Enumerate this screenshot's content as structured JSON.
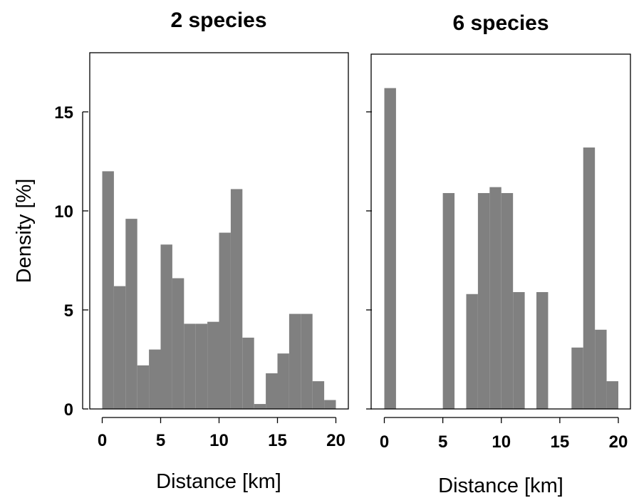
{
  "chart_data": [
    {
      "type": "bar",
      "title": "2 species",
      "xlabel": "Distance [km]",
      "ylabel": "Density [%]",
      "xlim": [
        -1,
        21
      ],
      "ylim": [
        0,
        18
      ],
      "xticks": [
        "0",
        "5",
        "10",
        "15",
        "20"
      ],
      "yticks": [
        "0",
        "5",
        "10",
        "15"
      ],
      "bin_width": 1,
      "bins": [
        {
          "start": 0,
          "value": 12.0
        },
        {
          "start": 1,
          "value": 6.2
        },
        {
          "start": 2,
          "value": 9.6
        },
        {
          "start": 3,
          "value": 2.2
        },
        {
          "start": 4,
          "value": 3.0
        },
        {
          "start": 5,
          "value": 8.3
        },
        {
          "start": 6,
          "value": 6.6
        },
        {
          "start": 7,
          "value": 4.3
        },
        {
          "start": 8,
          "value": 4.3
        },
        {
          "start": 9,
          "value": 4.4
        },
        {
          "start": 10,
          "value": 8.9
        },
        {
          "start": 11,
          "value": 11.1
        },
        {
          "start": 12,
          "value": 3.6
        },
        {
          "start": 13,
          "value": 0.25
        },
        {
          "start": 14,
          "value": 1.8
        },
        {
          "start": 15,
          "value": 2.8
        },
        {
          "start": 16,
          "value": 4.8
        },
        {
          "start": 17,
          "value": 4.8
        },
        {
          "start": 18,
          "value": 1.4
        },
        {
          "start": 19,
          "value": 0.45
        }
      ]
    },
    {
      "type": "bar",
      "title": "6 species",
      "xlabel": "Distance [km]",
      "ylabel": "",
      "xlim": [
        -1,
        21
      ],
      "ylim": [
        0,
        18
      ],
      "xticks": [
        "0",
        "5",
        "10",
        "15",
        "20"
      ],
      "yticks": [],
      "bin_width": 1,
      "bins": [
        {
          "start": 0,
          "value": 16.2
        },
        {
          "start": 5,
          "value": 10.9
        },
        {
          "start": 7,
          "value": 5.8
        },
        {
          "start": 8,
          "value": 10.9
        },
        {
          "start": 9,
          "value": 11.2
        },
        {
          "start": 10,
          "value": 10.9
        },
        {
          "start": 11,
          "value": 5.9
        },
        {
          "start": 13,
          "value": 5.9
        },
        {
          "start": 16,
          "value": 3.1
        },
        {
          "start": 17,
          "value": 13.2
        },
        {
          "start": 18,
          "value": 4.0
        },
        {
          "start": 19,
          "value": 1.4
        }
      ]
    }
  ]
}
